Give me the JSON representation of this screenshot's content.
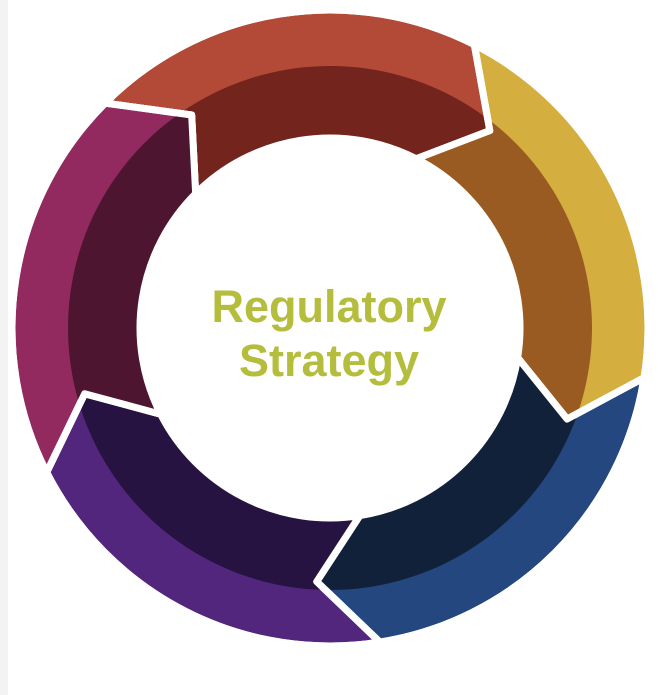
{
  "center": {
    "line1": "Regulatory",
    "line2": "Strategy",
    "color": "#b5bd3c"
  },
  "segments": [
    {
      "name": "segment-red",
      "outer": "#b34a38",
      "inner": "#72241d"
    },
    {
      "name": "segment-gold",
      "outer": "#d4ae3f",
      "inner": "#9a5b22"
    },
    {
      "name": "segment-blue",
      "outer": "#23477e",
      "inner": "#12213a"
    },
    {
      "name": "segment-purple",
      "outer": "#52267d",
      "inner": "#261342"
    },
    {
      "name": "segment-magenta",
      "outer": "#922a60",
      "inner": "#4e1530"
    }
  ]
}
